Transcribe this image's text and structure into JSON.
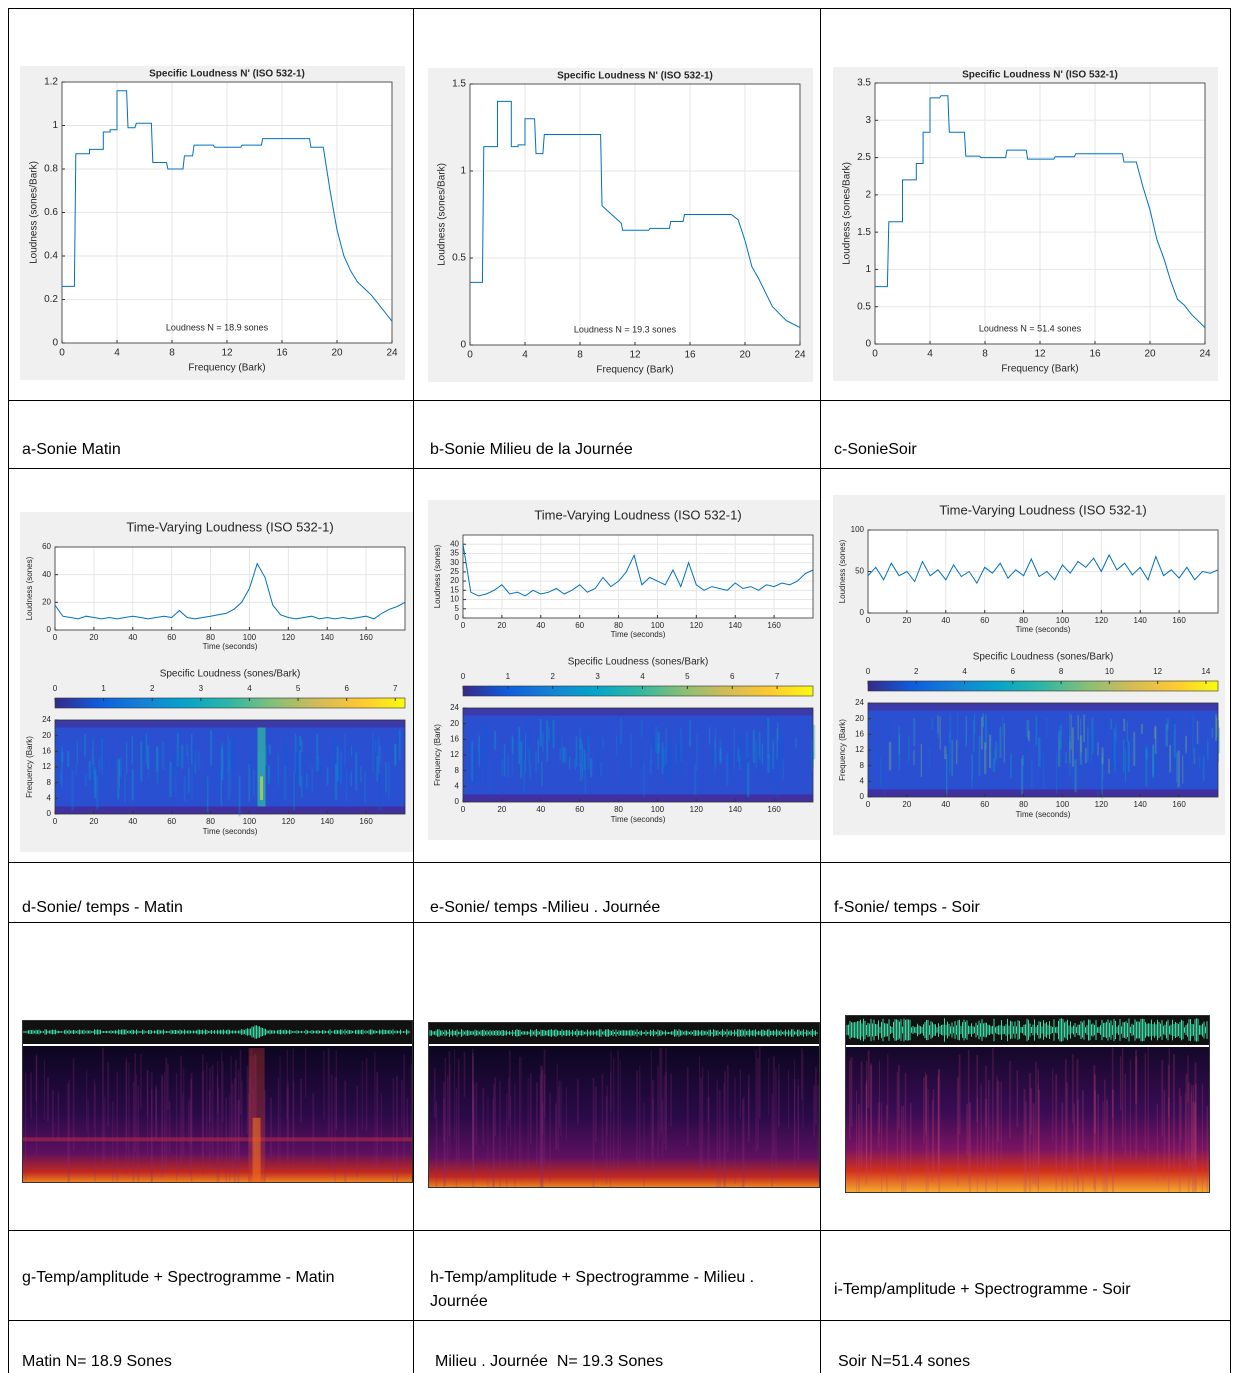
{
  "loudness_plots": [
    {
      "type": "line",
      "title": "Specific Loudness N' (ISO 532-1)",
      "xlabel": "Frequency (Bark)",
      "ylabel": "Loudness (sones/Bark)",
      "annotation": "Loudness N = 18.9 sones",
      "color": "#0072bd",
      "grid": true,
      "xlim": [
        0,
        24
      ],
      "xticks": [
        0,
        4,
        8,
        12,
        16,
        20,
        24
      ],
      "ylim": [
        0,
        1.2
      ],
      "yticks": [
        0,
        0.2,
        0.4,
        0.6,
        0.8,
        1,
        1.2
      ],
      "x": [
        0,
        0.9,
        1,
        2,
        2,
        3,
        3,
        3.5,
        3.5,
        4,
        4,
        4.7,
        4.8,
        5.3,
        5.4,
        6.5,
        6.6,
        7.6,
        7.7,
        8.8,
        8.9,
        9.5,
        9.6,
        11,
        11.1,
        13,
        13.1,
        14.5,
        14.6,
        15.5,
        15.6,
        18,
        18.1,
        19,
        19.5,
        20,
        20.5,
        21,
        21.5,
        22,
        22.5,
        23,
        24
      ],
      "values": [
        0.26,
        0.26,
        0.87,
        0.87,
        0.89,
        0.89,
        0.97,
        0.97,
        0.98,
        0.98,
        1.16,
        1.16,
        0.99,
        0.99,
        1.01,
        1.01,
        0.83,
        0.83,
        0.8,
        0.8,
        0.86,
        0.86,
        0.91,
        0.91,
        0.9,
        0.9,
        0.91,
        0.91,
        0.94,
        0.94,
        0.94,
        0.94,
        0.9,
        0.9,
        0.7,
        0.52,
        0.4,
        0.33,
        0.28,
        0.25,
        0.22,
        0.18,
        0.1
      ]
    },
    {
      "type": "line",
      "title": "Specific Loudness N' (ISO 532-1)",
      "xlabel": "Frequency (Bark)",
      "ylabel": "Loudness (sones/Bark)",
      "annotation": "Loudness N = 19.3 sones",
      "color": "#0072bd",
      "grid": true,
      "xlim": [
        0,
        24
      ],
      "xticks": [
        0,
        4,
        8,
        12,
        16,
        20,
        24
      ],
      "ylim": [
        0,
        1.5
      ],
      "yticks": [
        0,
        0.5,
        1,
        1.5
      ],
      "x": [
        0,
        0.9,
        1,
        2,
        2,
        3,
        3,
        3.5,
        3.5,
        4,
        4,
        4.7,
        4.8,
        5.3,
        5.4,
        6.5,
        6.6,
        7.6,
        7.7,
        8.8,
        8.9,
        9.5,
        9.6,
        11,
        11.1,
        13,
        13.1,
        14.5,
        14.6,
        15.5,
        15.6,
        18,
        18.1,
        19,
        19.5,
        20,
        20.5,
        21,
        21.5,
        22,
        22.5,
        23,
        24
      ],
      "values": [
        0.36,
        0.36,
        1.14,
        1.14,
        1.4,
        1.4,
        1.14,
        1.14,
        1.15,
        1.15,
        1.3,
        1.3,
        1.1,
        1.1,
        1.21,
        1.21,
        1.21,
        1.21,
        1.21,
        1.21,
        1.21,
        1.21,
        0.8,
        0.7,
        0.66,
        0.66,
        0.67,
        0.67,
        0.71,
        0.71,
        0.75,
        0.75,
        0.75,
        0.75,
        0.72,
        0.6,
        0.45,
        0.38,
        0.3,
        0.22,
        0.18,
        0.14,
        0.1
      ]
    },
    {
      "type": "line",
      "title": "Specific Loudness N' (ISO 532-1)",
      "xlabel": "Frequency (Bark)",
      "ylabel": "Loudness (sones/Bark)",
      "annotation": "Loudness N = 51.4 sones",
      "color": "#0072bd",
      "grid": true,
      "xlim": [
        0,
        24
      ],
      "xticks": [
        0,
        4,
        8,
        12,
        16,
        20,
        24
      ],
      "ylim": [
        0,
        3.5
      ],
      "yticks": [
        0,
        0.5,
        1,
        1.5,
        2,
        2.5,
        3,
        3.5
      ],
      "x": [
        0,
        0.9,
        1,
        2,
        2,
        3,
        3,
        3.5,
        3.5,
        4,
        4,
        4.7,
        4.8,
        5.3,
        5.4,
        6.5,
        6.6,
        7.6,
        7.7,
        8.8,
        8.9,
        9.5,
        9.6,
        11,
        11.1,
        13,
        13.1,
        14.5,
        14.6,
        15.5,
        15.6,
        18,
        18.1,
        19,
        19.5,
        20,
        20.5,
        21,
        21.5,
        22,
        22.5,
        23,
        24
      ],
      "values": [
        0.77,
        0.77,
        1.64,
        1.64,
        2.2,
        2.2,
        2.42,
        2.42,
        2.84,
        2.84,
        3.3,
        3.3,
        3.33,
        3.33,
        2.84,
        2.84,
        2.52,
        2.52,
        2.5,
        2.5,
        2.5,
        2.5,
        2.6,
        2.6,
        2.48,
        2.48,
        2.51,
        2.51,
        2.55,
        2.55,
        2.55,
        2.55,
        2.44,
        2.44,
        2.1,
        1.8,
        1.4,
        1.15,
        0.85,
        0.6,
        0.52,
        0.4,
        0.22
      ]
    }
  ],
  "loudness_captions": [
    "a-Sonie Matin",
    "b-Sonie Milieu de la Journée",
    "c-SonieSoir"
  ],
  "time_plots": [
    {
      "type": "line",
      "title": "Time-Varying Loudness (ISO 532-1)",
      "xlabel": "Time (seconds)",
      "ylabel": "Loudness (sones)",
      "color": "#0072bd",
      "grid": true,
      "xlim": [
        0,
        180
      ],
      "xticks": [
        0,
        20,
        40,
        60,
        80,
        100,
        120,
        140,
        160
      ],
      "ylim": [
        0,
        60
      ],
      "yticks": [
        0,
        20,
        40,
        60
      ],
      "x": [
        0,
        4,
        8,
        12,
        16,
        20,
        24,
        28,
        32,
        36,
        40,
        44,
        48,
        52,
        56,
        60,
        64,
        68,
        72,
        76,
        80,
        84,
        88,
        92,
        96,
        100,
        104,
        108,
        112,
        116,
        120,
        124,
        128,
        132,
        136,
        140,
        144,
        148,
        152,
        156,
        160,
        164,
        168,
        172,
        176,
        180
      ],
      "values": [
        18,
        10,
        9,
        8,
        10,
        9,
        8,
        9,
        8,
        9,
        10,
        9,
        8,
        9,
        10,
        9,
        14,
        9,
        8,
        9,
        10,
        11,
        12,
        15,
        20,
        30,
        48,
        38,
        18,
        11,
        9,
        8,
        9,
        10,
        8,
        9,
        8,
        9,
        8,
        9,
        10,
        8,
        12,
        15,
        17,
        20
      ],
      "heatmap": {
        "title": "Specific Loudness (sones/Bark)",
        "clim": [
          0,
          7.2
        ],
        "cticks": [
          0,
          1,
          2,
          3,
          4,
          5,
          6,
          7
        ],
        "ylabel": "Frequency (Bark)",
        "xlabel": "Time (seconds)",
        "xlim": [
          0,
          180
        ],
        "xticks": [
          0,
          20,
          40,
          60,
          80,
          100,
          120,
          140,
          160
        ],
        "ylim": [
          0,
          24
        ],
        "yticks": [
          0,
          4,
          8,
          12,
          16,
          20,
          24
        ]
      }
    },
    {
      "type": "line",
      "title": "Time-Varying Loudness (ISO 532-1)",
      "xlabel": "Time (seconds)",
      "ylabel": "Loudness (sones)",
      "color": "#0072bd",
      "grid": true,
      "xlim": [
        0,
        180
      ],
      "xticks": [
        0,
        20,
        40,
        60,
        80,
        100,
        120,
        140,
        160
      ],
      "ylim": [
        0,
        45
      ],
      "yticks": [
        0,
        5,
        10,
        15,
        20,
        25,
        30,
        35,
        40
      ],
      "x": [
        0,
        4,
        8,
        12,
        16,
        20,
        24,
        28,
        32,
        36,
        40,
        44,
        48,
        52,
        56,
        60,
        64,
        68,
        72,
        76,
        80,
        84,
        88,
        92,
        96,
        100,
        104,
        108,
        112,
        116,
        120,
        124,
        128,
        132,
        136,
        140,
        144,
        148,
        152,
        156,
        160,
        164,
        168,
        172,
        176,
        180
      ],
      "values": [
        40,
        14,
        12,
        13,
        15,
        18,
        13,
        14,
        12,
        15,
        13,
        14,
        16,
        13,
        15,
        18,
        14,
        16,
        22,
        17,
        20,
        25,
        34,
        18,
        22,
        20,
        18,
        26,
        17,
        30,
        18,
        15,
        17,
        16,
        15,
        19,
        16,
        17,
        15,
        18,
        17,
        19,
        18,
        20,
        24,
        26
      ],
      "heatmap": {
        "title": "Specific Loudness (sones/Bark)",
        "clim": [
          0,
          7.8
        ],
        "cticks": [
          0,
          1,
          2,
          3,
          4,
          5,
          6,
          7
        ],
        "ylabel": "Frequency (Bark)",
        "xlabel": "Time (seconds)",
        "xlim": [
          0,
          180
        ],
        "xticks": [
          0,
          20,
          40,
          60,
          80,
          100,
          120,
          140,
          160
        ],
        "ylim": [
          0,
          24
        ],
        "yticks": [
          0,
          4,
          8,
          12,
          16,
          20,
          24
        ]
      }
    },
    {
      "type": "line",
      "title": "Time-Varying Loudness (ISO 532-1)",
      "xlabel": "Time (seconds)",
      "ylabel": "Loudness (sones)",
      "color": "#0072bd",
      "grid": true,
      "xlim": [
        0,
        180
      ],
      "xticks": [
        0,
        20,
        40,
        60,
        80,
        100,
        120,
        140,
        160
      ],
      "ylim": [
        0,
        100
      ],
      "yticks": [
        0,
        50,
        100
      ],
      "x": [
        0,
        4,
        8,
        12,
        16,
        20,
        24,
        28,
        32,
        36,
        40,
        44,
        48,
        52,
        56,
        60,
        64,
        68,
        72,
        76,
        80,
        84,
        88,
        92,
        96,
        100,
        104,
        108,
        112,
        116,
        120,
        124,
        128,
        132,
        136,
        140,
        144,
        148,
        152,
        156,
        160,
        164,
        168,
        172,
        176,
        180
      ],
      "values": [
        45,
        55,
        40,
        60,
        45,
        50,
        38,
        62,
        45,
        52,
        40,
        58,
        44,
        50,
        36,
        55,
        48,
        60,
        42,
        52,
        45,
        65,
        44,
        50,
        40,
        58,
        48,
        62,
        55,
        66,
        50,
        70,
        52,
        60,
        46,
        55,
        40,
        68,
        45,
        52,
        42,
        55,
        40,
        50,
        48,
        52
      ],
      "heatmap": {
        "title": "Specific Loudness (sones/Bark)",
        "clim": [
          0,
          14.5
        ],
        "cticks": [
          0,
          2,
          4,
          6,
          8,
          10,
          12,
          14
        ],
        "ylabel": "Frequency (Bark)",
        "xlabel": "Time (seconds)",
        "xlim": [
          0,
          180
        ],
        "xticks": [
          0,
          20,
          40,
          60,
          80,
          100,
          120,
          140,
          160
        ],
        "ylim": [
          0,
          24
        ],
        "yticks": [
          0,
          4,
          8,
          12,
          16,
          20,
          24
        ]
      }
    }
  ],
  "time_captions": [
    "d-Sonie/ temps - Matin",
    "e-Sonie/ temps -Milieu . Journée",
    "f-Sonie/ temps - Soir"
  ],
  "spectrogram_captions": [
    "g-Temp/amplitude + Spectrogramme - Matin",
    "h-Temp/amplitude + Spectrogramme - Milieu . Journée",
    "i-Temp/amplitude + Spectrogramme - Soir"
  ],
  "summary": [
    "Matin N= 18.9 Sones",
    "Milieu . Journée  N= 19.3 Sones",
    "Soir N=51.4 sones"
  ]
}
